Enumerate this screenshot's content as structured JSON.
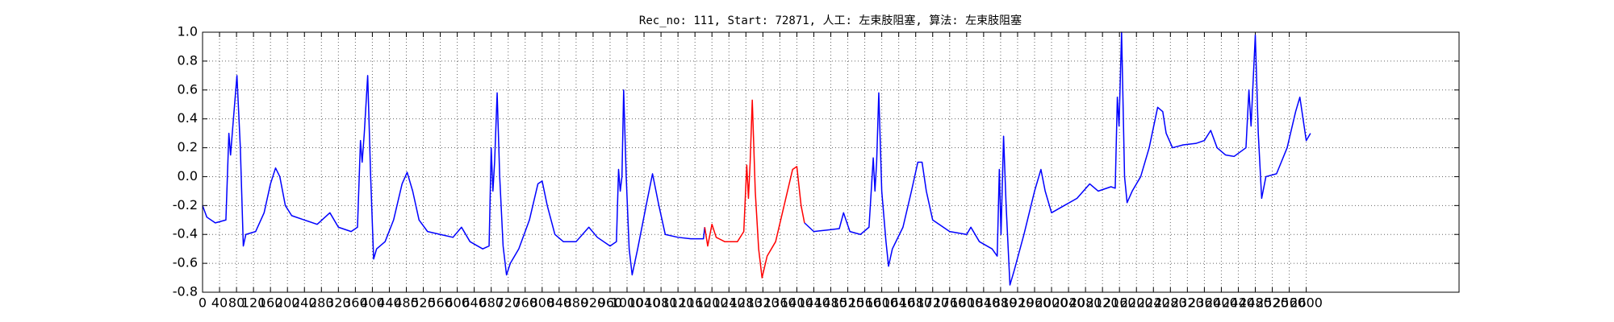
{
  "chart_data": {
    "type": "line",
    "title": "Rec_no: 111, Start: 72871, 人工: 左束肢阻塞, 算法: 左束肢阻塞",
    "xlim": [
      0,
      2960
    ],
    "ylim": [
      -0.8,
      1.0
    ],
    "xticks": [
      0,
      40,
      80,
      120,
      160,
      200,
      240,
      280,
      320,
      360,
      400,
      440,
      480,
      520,
      560,
      600,
      640,
      680,
      720,
      760,
      800,
      840,
      880,
      920,
      960,
      1000,
      1040,
      1080,
      1120,
      1160,
      1200,
      1240,
      1280,
      1320,
      1360,
      1400,
      1440,
      1480,
      1520,
      1560,
      1600,
      1640,
      1680,
      1720,
      1760,
      1800,
      1840,
      1880,
      1920,
      1960,
      2000,
      2040,
      2080,
      2120,
      2160,
      2200,
      2240,
      2280,
      2320,
      2360,
      2400,
      2440,
      2480,
      2520,
      2560,
      2600
    ],
    "yticks": [
      -0.8,
      -0.6,
      -0.4,
      -0.2,
      {
        "value": 0,
        "label": "0.0"
      },
      0.2,
      0.4,
      0.6,
      0.8,
      {
        "value": 1,
        "label": "1.0"
      }
    ],
    "grid": true,
    "series": [
      {
        "color": "#0000ff",
        "x": [
          0,
          10,
          30,
          55,
          62,
          66,
          70,
          81,
          89,
          96,
          102,
          125,
          145,
          160,
          172,
          182,
          195,
          210,
          240,
          270,
          300,
          320,
          350,
          365,
          372,
          376,
          381,
          389,
          396,
          403,
          410,
          430,
          450,
          470,
          482,
          495,
          510,
          530,
          560,
          590,
          610,
          630,
          660,
          675,
          680,
          684,
          688,
          694,
          700,
          708,
          716,
          725,
          745,
          770,
          790,
          800,
          812,
          830,
          850,
          880,
          910,
          930,
          960,
          975,
          980,
          984,
          988,
          992,
          998,
          1005,
          1012,
          1025,
          1045,
          1060,
          1075,
          1090,
          1120,
          1150,
          1180,
          1183,
          1300,
          1418,
          1440,
          1470,
          1500,
          1510,
          1525,
          1550,
          1570,
          1580,
          1584,
          1588,
          1593,
          1600,
          1610,
          1616,
          1625,
          1650,
          1670,
          1685,
          1695,
          1705,
          1720,
          1760,
          1800,
          1810,
          1830,
          1860,
          1872,
          1877,
          1881,
          1887,
          1893,
          1902,
          1912,
          1935,
          1960,
          1975,
          1985,
          2000,
          2030,
          2060,
          2090,
          2110,
          2140,
          2150,
          2155,
          2159,
          2165,
          2172,
          2178,
          2190,
          2210,
          2230,
          2250,
          2262,
          2270,
          2285,
          2310,
          2340,
          2360,
          2375,
          2390,
          2410,
          2430,
          2458,
          2465,
          2470,
          2480,
          2487,
          2495,
          2505,
          2530,
          2555,
          2575,
          2585,
          2595,
          2600,
          2610
        ],
        "values": [
          -0.2,
          -0.28,
          -0.32,
          -0.3,
          0.3,
          0.15,
          0.3,
          0.7,
          0.2,
          -0.48,
          -0.4,
          -0.38,
          -0.25,
          -0.05,
          0.06,
          0,
          -0.2,
          -0.27,
          -0.3,
          -0.33,
          -0.25,
          -0.35,
          -0.38,
          -0.35,
          0.25,
          0.1,
          0.3,
          0.7,
          0,
          -0.57,
          -0.5,
          -0.45,
          -0.3,
          -0.05,
          0.03,
          -0.1,
          -0.3,
          -0.38,
          -0.4,
          -0.42,
          -0.35,
          -0.45,
          -0.5,
          -0.48,
          0.2,
          -0.1,
          0.1,
          0.58,
          0,
          -0.48,
          -0.68,
          -0.6,
          -0.5,
          -0.3,
          -0.05,
          -0.03,
          -0.2,
          -0.4,
          -0.45,
          -0.45,
          -0.35,
          -0.42,
          -0.48,
          -0.45,
          0.05,
          -0.1,
          0,
          0.6,
          0,
          -0.5,
          -0.68,
          -0.5,
          -0.2,
          0.02,
          -0.2,
          -0.4,
          -0.42,
          -0.43,
          -0.43,
          -0.35,
          null,
          -0.32,
          -0.38,
          -0.37,
          -0.36,
          -0.25,
          -0.38,
          -0.4,
          -0.35,
          0.13,
          -0.1,
          0.1,
          0.58,
          -0.1,
          -0.45,
          -0.62,
          -0.5,
          -0.35,
          -0.1,
          0.1,
          0.1,
          -0.1,
          -0.3,
          -0.38,
          -0.4,
          -0.35,
          -0.45,
          -0.5,
          -0.55,
          0.05,
          -0.4,
          0.28,
          -0.2,
          -0.75,
          -0.65,
          -0.4,
          -0.1,
          0.05,
          -0.1,
          -0.25,
          -0.2,
          -0.15,
          -0.05,
          -0.1,
          -0.07,
          -0.08,
          0.55,
          0.35,
          1.0,
          0,
          -0.18,
          -0.1,
          0,
          0.2,
          0.48,
          0.45,
          0.3,
          0.2,
          0.22,
          0.23,
          0.25,
          0.32,
          0.2,
          0.15,
          0.14,
          0.2,
          0.6,
          0.35,
          0.98,
          0.3,
          -0.15,
          0,
          0.02,
          0.2,
          0.45,
          0.55,
          0.35,
          0.25,
          0.3
        ]
      },
      {
        "color": "#ff0000",
        "x": [
          1183,
          1190,
          1200,
          1210,
          1230,
          1260,
          1275,
          1282,
          1286,
          1290,
          1295,
          1302,
          1310,
          1318,
          1330,
          1350,
          1370,
          1390,
          1400,
          1410,
          1418
        ],
        "values": [
          -0.35,
          -0.48,
          -0.33,
          -0.42,
          -0.45,
          -0.45,
          -0.38,
          0.08,
          -0.15,
          0.1,
          0.53,
          -0.1,
          -0.5,
          -0.7,
          -0.55,
          -0.45,
          -0.2,
          0.05,
          0.07,
          -0.2,
          -0.32
        ]
      }
    ]
  }
}
